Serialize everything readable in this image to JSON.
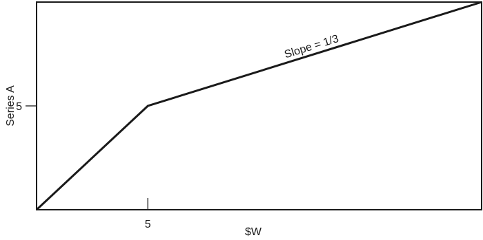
{
  "chart_data": {
    "type": "line",
    "title": "",
    "xlabel": "$W",
    "ylabel": "Series A",
    "xlim": [
      0,
      20
    ],
    "ylim": [
      0,
      10
    ],
    "x_ticks": [
      5
    ],
    "y_ticks": [
      5
    ],
    "x_tick_labels": [
      "5"
    ],
    "y_tick_labels": [
      "5"
    ],
    "series": [
      {
        "x": [
          0,
          5,
          20
        ],
        "y": [
          0,
          5,
          10
        ]
      }
    ],
    "annotations": [
      {
        "text": "Slope = 1/3",
        "x": 12.4,
        "y": 7.7
      }
    ],
    "grid": false,
    "colors": {
      "axis": "#1a1a1a",
      "line": "#1a1a1a"
    }
  }
}
